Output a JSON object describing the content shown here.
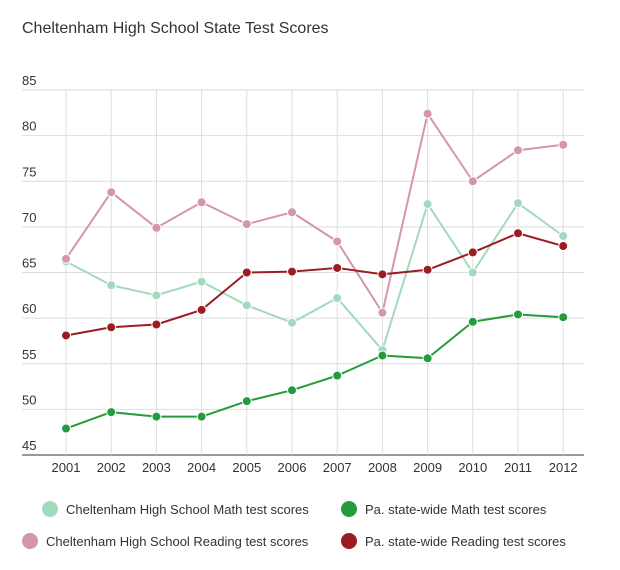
{
  "chart_data": {
    "type": "line",
    "title": "Cheltenham High School State Test Scores",
    "xlabel": "",
    "ylabel": "",
    "x": [
      "2001",
      "2002",
      "2003",
      "2004",
      "2005",
      "2006",
      "2007",
      "2008",
      "2009",
      "2010",
      "2011",
      "2012"
    ],
    "ylim": [
      45,
      85
    ],
    "yticks": [
      85,
      80,
      75,
      70,
      65,
      60,
      55,
      50,
      45
    ],
    "grid": true,
    "legend_position": "bottom",
    "series": [
      {
        "name": "Cheltenham High School Math test scores",
        "color": "#a3d9bd",
        "values": [
          66.2,
          63.6,
          62.5,
          64.0,
          61.4,
          59.5,
          62.2,
          56.5,
          72.5,
          65.0,
          72.6,
          69.0
        ]
      },
      {
        "name": "Pa. state-wide Math test scores",
        "color": "#249b3c",
        "values": [
          47.9,
          49.7,
          49.2,
          49.2,
          50.9,
          52.1,
          53.7,
          55.9,
          55.6,
          59.6,
          60.4,
          60.1
        ]
      },
      {
        "name": "Cheltenham High School Reading test scores",
        "color": "#d596a7",
        "values": [
          66.5,
          73.8,
          69.9,
          72.7,
          70.3,
          71.6,
          68.4,
          60.6,
          82.4,
          75.0,
          78.4,
          79.0
        ]
      },
      {
        "name": "Pa. state-wide Reading test scores",
        "color": "#9b1c23",
        "values": [
          58.1,
          59.0,
          59.3,
          60.9,
          65.0,
          65.1,
          65.5,
          64.8,
          65.3,
          67.2,
          69.3,
          67.9
        ]
      }
    ]
  }
}
